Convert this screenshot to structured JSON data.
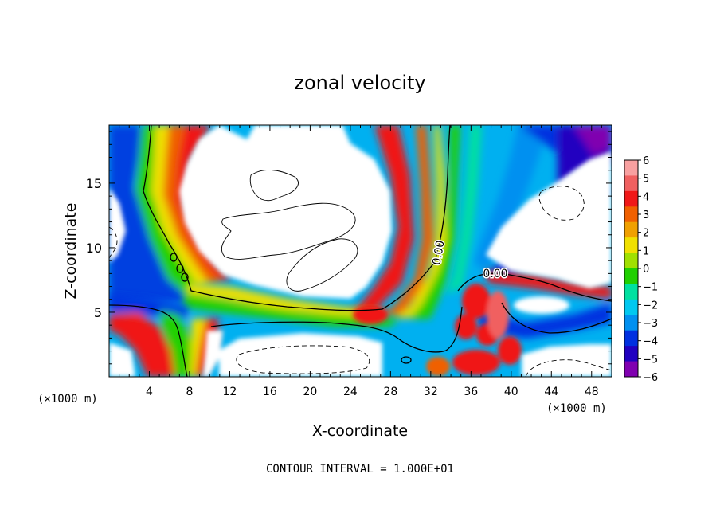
{
  "chart_data": {
    "type": "heatmap",
    "title": "zonal velocity",
    "xlabel": "X-coordinate",
    "ylabel": "Z-coordinate",
    "x_unit_label": "(×1000 m)",
    "x_ticks": [
      4,
      8,
      12,
      16,
      20,
      24,
      28,
      32,
      36,
      40,
      44,
      48
    ],
    "y_ticks": [
      5,
      10,
      15
    ],
    "xlim": [
      0,
      50
    ],
    "ylim": [
      0,
      19.5
    ],
    "footer": "CONTOUR INTERVAL = 1.000E+01",
    "colorbar": {
      "ticks": [
        6,
        5,
        4,
        3,
        2,
        1,
        0,
        -1,
        -2,
        -3,
        -4,
        -5,
        -6
      ],
      "colors": [
        "#f8a0a0",
        "#f06060",
        "#f01818",
        "#f06000",
        "#f0a000",
        "#f0e000",
        "#a0e000",
        "#20d000",
        "#00e0a0",
        "#00c8f0",
        "#0090f0",
        "#0030e0",
        "#2000c0",
        "#8000b0"
      ]
    },
    "contour_labels": [
      {
        "text": "0.00",
        "x": 32,
        "z": 10.2
      },
      {
        "text": "0.00",
        "x": 37.8,
        "z": 8.1
      }
    ],
    "grid": false,
    "legend": "colorbar-right"
  }
}
